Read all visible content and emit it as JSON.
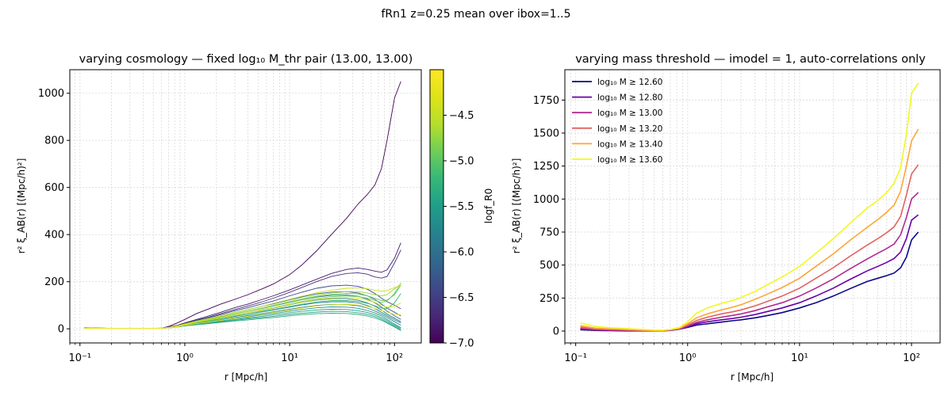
{
  "suptitle": "fRn1  z=0.25  mean over ibox=1..5",
  "chart_data": [
    {
      "type": "line",
      "title": "varying cosmology — fixed log₁₀ M_thr pair (13.00, 13.00)",
      "xlabel": "r [Mpc/h]",
      "ylabel": "r² ξ_AB(r) [(Mpc/h)²]",
      "xscale": "log",
      "xlim": [
        0.08,
        180
      ],
      "ylim": [
        -60,
        1100
      ],
      "xticks": [
        0.1,
        1,
        10,
        100
      ],
      "xtick_labels": [
        "10⁻¹",
        "10⁰",
        "10¹",
        "10²"
      ],
      "yticks": [
        0,
        200,
        400,
        600,
        800,
        1000
      ],
      "ytick_labels": [
        "0",
        "200",
        "400",
        "600",
        "800",
        "1000"
      ],
      "grid": true,
      "colorbar": {
        "label": "logf_R0",
        "colormap": "viridis",
        "range": [
          -7.0,
          -4.0
        ],
        "ticks": [
          -7.0,
          -6.5,
          -6.0,
          -5.5,
          -5.0,
          -4.5
        ],
        "tick_labels": [
          "−7.0",
          "−6.5",
          "−6.0",
          "−5.5",
          "−5.0",
          "−4.5"
        ]
      },
      "x": [
        0.11,
        0.2,
        0.3,
        0.45,
        0.6,
        0.7,
        0.85,
        1.0,
        1.3,
        1.7,
        2.2,
        3,
        4,
        5.5,
        7,
        10,
        13,
        18,
        25,
        35,
        45,
        55,
        65,
        75,
        85,
        100,
        115
      ],
      "series": [
        {
          "logf_R0": -7.0,
          "values": [
            5,
            2,
            2,
            2,
            3,
            10,
            25,
            40,
            65,
            85,
            105,
            125,
            145,
            170,
            190,
            230,
            270,
            330,
            400,
            470,
            530,
            570,
            610,
            680,
            800,
            980,
            1050
          ]
        },
        {
          "logf_R0": -6.8,
          "values": [
            3,
            2,
            2,
            2,
            3,
            8,
            15,
            25,
            40,
            55,
            70,
            90,
            105,
            125,
            140,
            165,
            185,
            210,
            235,
            252,
            258,
            252,
            245,
            240,
            250,
            300,
            365
          ]
        },
        {
          "logf_R0": -6.6,
          "values": [
            3,
            2,
            2,
            2,
            3,
            7,
            14,
            23,
            37,
            50,
            64,
            82,
            97,
            115,
            130,
            155,
            175,
            200,
            222,
            235,
            238,
            232,
            220,
            215,
            222,
            280,
            335
          ]
        },
        {
          "logf_R0": -6.4,
          "values": [
            3,
            2,
            2,
            2,
            3,
            6,
            13,
            22,
            35,
            47,
            60,
            77,
            90,
            106,
            118,
            140,
            155,
            172,
            182,
            185,
            180,
            168,
            150,
            130,
            115,
            100,
            85
          ]
        },
        {
          "logf_R0": -6.2,
          "values": [
            3,
            2,
            2,
            2,
            3,
            6,
            12,
            20,
            32,
            43,
            55,
            70,
            82,
            96,
            106,
            123,
            135,
            148,
            156,
            158,
            152,
            140,
            125,
            105,
            88,
            70,
            55
          ]
        },
        {
          "logf_R0": -6.0,
          "values": [
            3,
            2,
            2,
            2,
            3,
            6,
            12,
            19,
            30,
            40,
            50,
            64,
            75,
            87,
            97,
            112,
            123,
            135,
            142,
            143,
            138,
            126,
            110,
            92,
            75,
            55,
            40
          ]
        },
        {
          "logf_R0": -5.9,
          "values": [
            3,
            2,
            2,
            2,
            3,
            5,
            11,
            18,
            28,
            37,
            46,
            58,
            68,
            79,
            88,
            102,
            112,
            122,
            128,
            128,
            122,
            110,
            96,
            80,
            62,
            45,
            30
          ]
        },
        {
          "logf_R0": -5.8,
          "values": [
            3,
            2,
            2,
            2,
            3,
            5,
            10,
            17,
            26,
            34,
            42,
            53,
            62,
            72,
            80,
            92,
            101,
            110,
            115,
            115,
            110,
            99,
            86,
            70,
            55,
            38,
            25
          ]
        },
        {
          "logf_R0": -5.7,
          "values": [
            3,
            2,
            2,
            2,
            3,
            5,
            10,
            16,
            24,
            31,
            38,
            48,
            56,
            65,
            72,
            83,
            91,
            99,
            103,
            103,
            98,
            88,
            76,
            62,
            48,
            30,
            15
          ]
        },
        {
          "logf_R0": -5.6,
          "values": [
            3,
            2,
            2,
            2,
            3,
            5,
            9,
            15,
            22,
            28,
            35,
            44,
            51,
            59,
            65,
            75,
            82,
            89,
            93,
            92,
            87,
            78,
            67,
            55,
            40,
            20,
            5
          ]
        },
        {
          "logf_R0": -5.5,
          "values": [
            3,
            2,
            2,
            2,
            3,
            5,
            9,
            14,
            20,
            26,
            32,
            40,
            46,
            53,
            59,
            68,
            74,
            80,
            83,
            82,
            77,
            69,
            59,
            47,
            34,
            15,
            0
          ]
        },
        {
          "logf_R0": -5.4,
          "values": [
            3,
            2,
            2,
            2,
            3,
            4,
            8,
            13,
            19,
            24,
            29,
            36,
            42,
            48,
            53,
            61,
            66,
            71,
            74,
            73,
            68,
            61,
            52,
            41,
            28,
            10,
            -5
          ]
        },
        {
          "logf_R0": -5.3,
          "values": [
            3,
            2,
            2,
            2,
            3,
            4,
            8,
            12,
            17,
            22,
            27,
            33,
            38,
            44,
            48,
            55,
            60,
            64,
            66,
            65,
            61,
            54,
            46,
            36,
            24,
            8,
            -8
          ]
        },
        {
          "logf_R0": -5.2,
          "values": [
            3,
            2,
            2,
            2,
            3,
            5,
            10,
            17,
            26,
            34,
            42,
            54,
            63,
            74,
            82,
            95,
            104,
            114,
            120,
            120,
            116,
            108,
            98,
            88,
            85,
            110,
            150
          ]
        },
        {
          "logf_R0": -5.0,
          "values": [
            3,
            2,
            2,
            2,
            3,
            6,
            12,
            20,
            30,
            40,
            50,
            64,
            75,
            88,
            98,
            113,
            124,
            137,
            146,
            150,
            148,
            140,
            130,
            120,
            122,
            145,
            185
          ]
        },
        {
          "logf_R0": -4.9,
          "values": [
            3,
            2,
            2,
            2,
            3,
            5,
            11,
            18,
            28,
            37,
            46,
            59,
            69,
            81,
            90,
            105,
            116,
            128,
            136,
            139,
            137,
            130,
            120,
            112,
            118,
            150,
            195
          ]
        },
        {
          "logf_R0": -4.7,
          "values": [
            3,
            2,
            2,
            2,
            3,
            6,
            12,
            20,
            31,
            41,
            51,
            65,
            76,
            89,
            100,
            116,
            128,
            142,
            152,
            158,
            158,
            152,
            145,
            140,
            145,
            170,
            190
          ]
        },
        {
          "logf_R0": -4.5,
          "values": [
            3,
            2,
            2,
            2,
            3,
            6,
            13,
            21,
            33,
            44,
            55,
            70,
            82,
            96,
            108,
            125,
            138,
            153,
            164,
            172,
            174,
            170,
            164,
            160,
            162,
            175,
            182
          ]
        },
        {
          "logf_R0": -4.3,
          "values": [
            3,
            2,
            2,
            2,
            3,
            5,
            11,
            18,
            28,
            37,
            46,
            58,
            68,
            80,
            89,
            103,
            113,
            124,
            131,
            133,
            130,
            122,
            112,
            100,
            92,
            95,
            110
          ]
        },
        {
          "logf_R0": -4.1,
          "values": [
            3,
            2,
            2,
            2,
            3,
            4,
            9,
            15,
            22,
            29,
            36,
            45,
            53,
            62,
            69,
            80,
            88,
            97,
            102,
            104,
            101,
            95,
            87,
            78,
            70,
            62,
            60
          ]
        }
      ]
    },
    {
      "type": "line",
      "title": "varying mass threshold — imodel = 1, auto-correlations only",
      "xlabel": "r [Mpc/h]",
      "ylabel": "r² ξ_AB(r) [(Mpc/h)²]",
      "xscale": "log",
      "xlim": [
        0.08,
        180
      ],
      "ylim": [
        -90,
        1980
      ],
      "xticks": [
        0.1,
        1,
        10,
        100
      ],
      "xtick_labels": [
        "10⁻¹",
        "10⁰",
        "10¹",
        "10²"
      ],
      "yticks": [
        0,
        250,
        500,
        750,
        1000,
        1250,
        1500,
        1750
      ],
      "ytick_labels": [
        "0",
        "250",
        "500",
        "750",
        "1000",
        "1250",
        "1500",
        "1750"
      ],
      "grid": true,
      "legend": {
        "position": "upper-left"
      },
      "x": [
        0.11,
        0.15,
        0.2,
        0.25,
        0.3,
        0.4,
        0.5,
        0.6,
        0.7,
        0.85,
        1.0,
        1.2,
        1.5,
        2,
        2.5,
        3,
        4,
        5,
        7,
        10,
        14,
        20,
        28,
        40,
        50,
        60,
        70,
        80,
        90,
        100,
        115
      ],
      "series": [
        {
          "name": "log₁₀ M ≥ 12.60",
          "color": "#0d0887",
          "values": [
            10,
            5,
            3,
            2,
            1,
            1,
            1,
            2,
            5,
            15,
            28,
            45,
            55,
            68,
            78,
            85,
            100,
            115,
            140,
            175,
            215,
            265,
            320,
            375,
            400,
            420,
            440,
            480,
            560,
            690,
            750
          ]
        },
        {
          "name": "log₁₀ M ≥ 12.80",
          "color": "#6a00a8",
          "values": [
            15,
            8,
            5,
            4,
            3,
            2,
            2,
            3,
            6,
            16,
            32,
            55,
            70,
            85,
            95,
            105,
            125,
            145,
            175,
            215,
            265,
            325,
            390,
            455,
            490,
            520,
            550,
            600,
            700,
            840,
            880
          ]
        },
        {
          "name": "log₁₀ M ≥ 13.00",
          "color": "#b12a90",
          "values": [
            20,
            10,
            7,
            6,
            5,
            3,
            2,
            3,
            7,
            18,
            38,
            65,
            85,
            105,
            118,
            130,
            155,
            180,
            215,
            265,
            325,
            395,
            470,
            545,
            590,
            625,
            660,
            730,
            860,
            1000,
            1050
          ]
        },
        {
          "name": "log₁₀ M ≥ 13.20",
          "color": "#e16462",
          "values": [
            30,
            16,
            12,
            10,
            8,
            5,
            3,
            4,
            8,
            20,
            45,
            80,
            105,
            130,
            145,
            160,
            190,
            220,
            265,
            325,
            400,
            480,
            565,
            650,
            700,
            745,
            790,
            870,
            1030,
            1190,
            1260
          ]
        },
        {
          "name": "log₁₀ M ≥ 13.40",
          "color": "#fca636",
          "values": [
            40,
            22,
            17,
            14,
            11,
            7,
            5,
            5,
            10,
            22,
            55,
            100,
            130,
            160,
            180,
            200,
            240,
            275,
            330,
            400,
            490,
            585,
            685,
            785,
            845,
            900,
            955,
            1060,
            1250,
            1440,
            1530
          ]
        },
        {
          "name": "log₁₀ M ≥ 13.60",
          "color": "#f0f921",
          "values": [
            60,
            35,
            25,
            22,
            18,
            12,
            8,
            7,
            12,
            28,
            70,
            135,
            175,
            210,
            230,
            255,
            300,
            345,
            410,
            490,
            590,
            700,
            815,
            930,
            990,
            1050,
            1120,
            1240,
            1490,
            1800,
            1880
          ]
        }
      ]
    }
  ]
}
